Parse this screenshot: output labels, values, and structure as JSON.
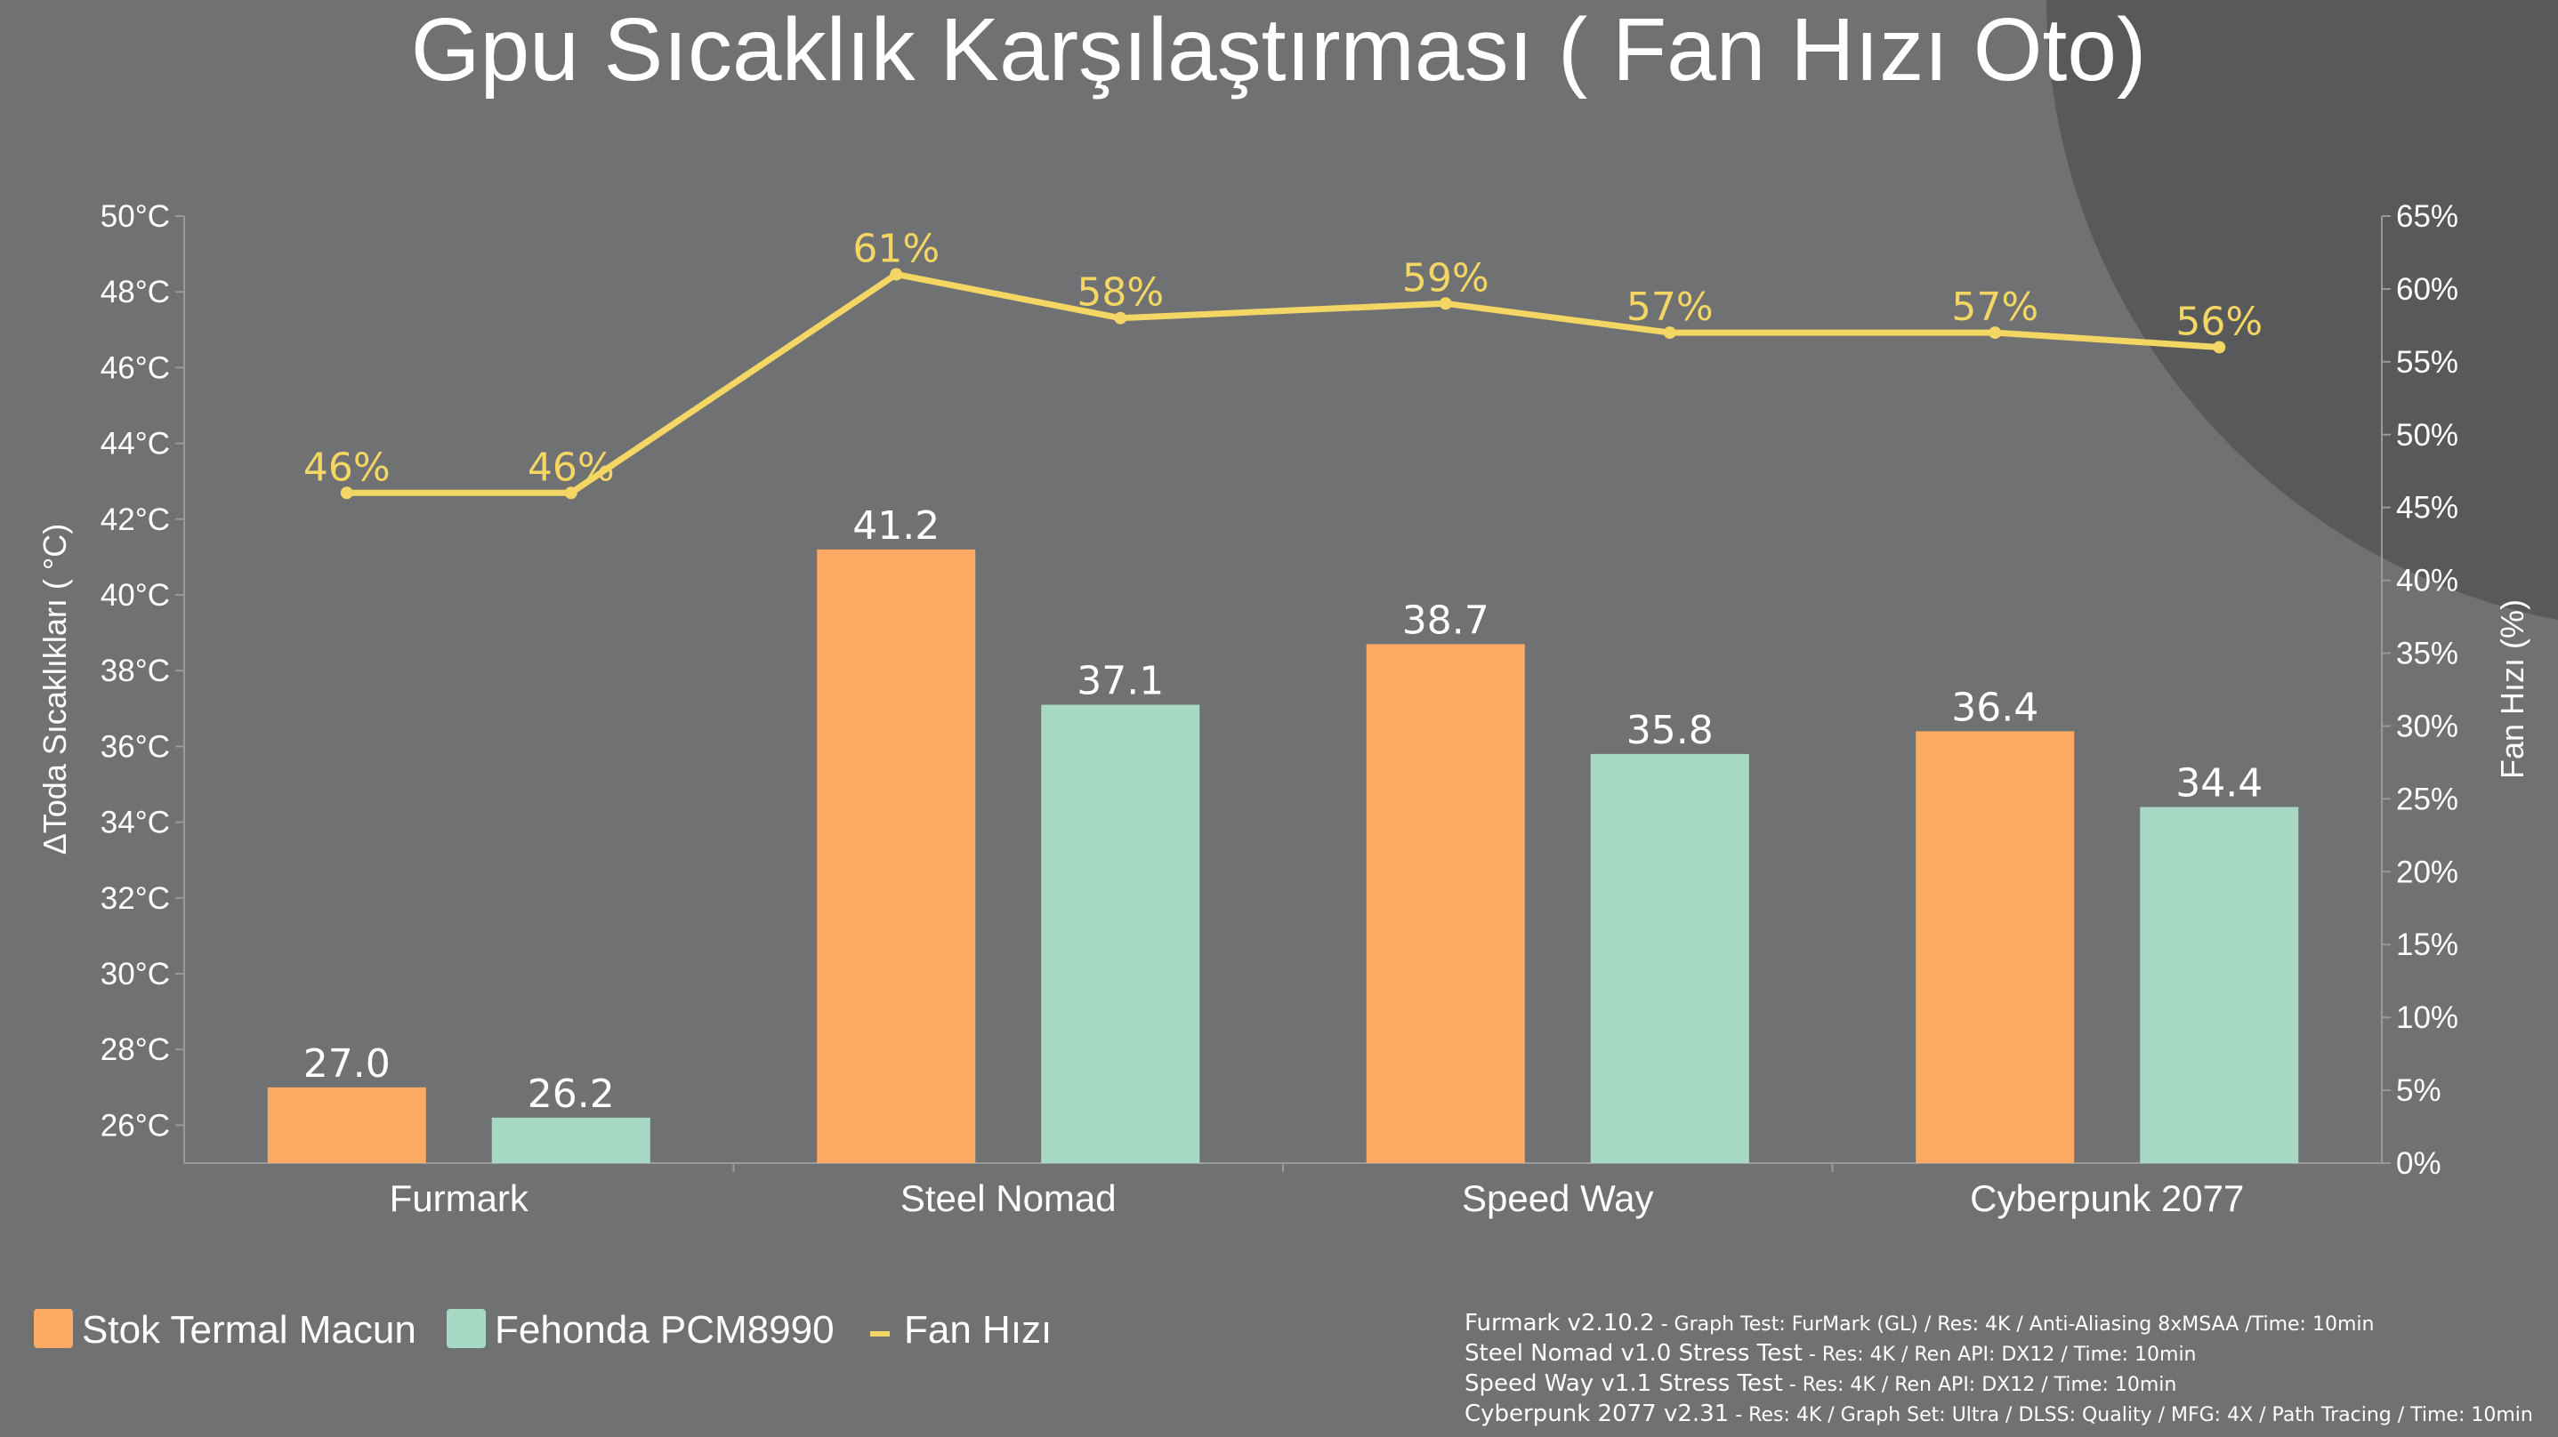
{
  "colors": {
    "background": "#707172",
    "corner_shape": "#58595b",
    "series_stock": "#fdaa65",
    "series_fehonda": "#a8d9c4",
    "fan_line": "#f3d663",
    "axis": "#9a9a9a"
  },
  "chart_data": {
    "type": "bar",
    "title": "Gpu Sıcaklık Karşılaştırması ( Fan Hızı Oto)",
    "ylabel": "ΔToda Sıcaklıkları ( °C)",
    "y2label": "Fan Hızı (%)",
    "ylim": [
      25,
      50
    ],
    "y2lim": [
      0,
      65
    ],
    "yticks": [
      26,
      28,
      30,
      32,
      34,
      36,
      38,
      40,
      42,
      44,
      46,
      48,
      50
    ],
    "ytick_labels": [
      "26°C",
      "28°C",
      "30°C",
      "32°C",
      "34°C",
      "36°C",
      "38°C",
      "40°C",
      "42°C",
      "44°C",
      "46°C",
      "48°C",
      "50°C"
    ],
    "y2ticks": [
      0,
      5,
      10,
      15,
      20,
      25,
      30,
      35,
      40,
      45,
      50,
      55,
      60,
      65
    ],
    "y2tick_labels": [
      "0%",
      "5%",
      "10%",
      "15%",
      "20%",
      "25%",
      "30%",
      "35%",
      "40%",
      "45%",
      "50%",
      "55%",
      "60%",
      "65%"
    ],
    "categories": [
      "Furmark",
      "Steel Nomad",
      "Speed Way",
      "Cyberpunk 2077"
    ],
    "series": [
      {
        "name": "Stok Termal Macun",
        "values": [
          27.0,
          41.2,
          38.7,
          36.4
        ],
        "labels": [
          "27.0",
          "41.2",
          "38.7",
          "36.4"
        ]
      },
      {
        "name": "Fehonda PCM8990",
        "values": [
          26.2,
          37.1,
          35.8,
          34.4
        ],
        "labels": [
          "26.2",
          "37.1",
          "35.8",
          "34.4"
        ]
      }
    ],
    "line_series": {
      "name": "Fan Hızı",
      "axis": "right",
      "values": [
        46,
        46,
        61,
        58,
        59,
        57,
        57,
        56
      ],
      "labels": [
        "46%",
        "46%",
        "61%",
        "58%",
        "59%",
        "57%",
        "57%",
        "56%"
      ]
    },
    "legend_position": "bottom-left",
    "grid": false
  },
  "notes": [
    {
      "bold": "Furmark v2.10.2",
      "rest": " - Graph Test: FurMark (GL) / Res: 4K / Anti-Aliasing 8xMSAA /Time: 10min"
    },
    {
      "bold": "Steel Nomad v1.0 Stress Test",
      "rest": " - Res: 4K / Ren API: DX12 / Time: 10min"
    },
    {
      "bold": "Speed Way v1.1 Stress Test",
      "rest": " - Res: 4K / Ren API: DX12 / Time: 10min"
    },
    {
      "bold": "Cyberpunk 2077 v2.31",
      "rest": " - Res: 4K / Graph Set: Ultra / DLSS: Quality / MFG: 4X / Path Tracing / Time: 10min"
    }
  ]
}
